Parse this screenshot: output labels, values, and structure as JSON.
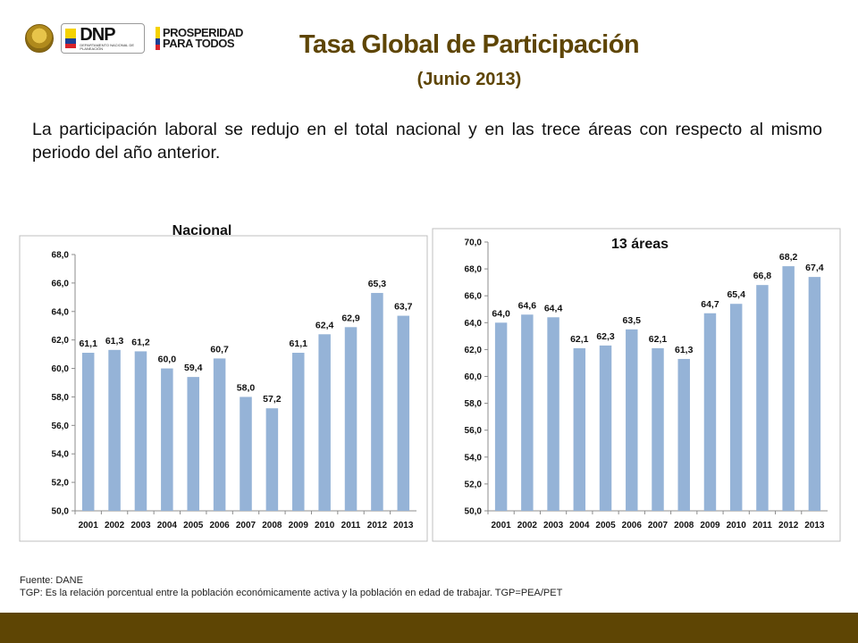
{
  "header": {
    "title": "Tasa Global de Participación",
    "subtitle": "(Junio 2013)",
    "logos": {
      "dnp_text": "DNP",
      "dnp_small": "DEPARTAMENTO NACIONAL DE PLANEACIÓN",
      "prosperidad_line1": "PROSPERIDAD",
      "prosperidad_line2": "PARA TODOS"
    }
  },
  "intro_text": "La participación laboral se redujo en el total nacional y en las trece áreas con respecto al mismo periodo del año anterior.",
  "colors": {
    "bar": "#95b3d7",
    "title": "#5e4504",
    "footer": "#5e4504"
  },
  "chart_data": [
    {
      "type": "bar",
      "title": "Nacional",
      "categories": [
        "2001",
        "2002",
        "2003",
        "2004",
        "2005",
        "2006",
        "2007",
        "2008",
        "2009",
        "2010",
        "2011",
        "2012",
        "2013"
      ],
      "values": [
        61.1,
        61.3,
        61.2,
        60.0,
        59.4,
        60.7,
        58.0,
        57.2,
        61.1,
        62.4,
        62.9,
        65.3,
        63.7
      ],
      "value_labels": [
        "61,1",
        "61,3",
        "61,2",
        "60,0",
        "59,4",
        "60,7",
        "58,0",
        "57,2",
        "61,1",
        "62,4",
        "62,9",
        "65,3",
        "63,7"
      ],
      "ylim": [
        50,
        68
      ],
      "yticks": [
        50,
        52,
        54,
        56,
        58,
        60,
        62,
        64,
        66,
        68
      ],
      "ytick_labels": [
        "50,0",
        "52,0",
        "54,0",
        "56,0",
        "58,0",
        "60,0",
        "62,0",
        "64,0",
        "66,0",
        "68,0"
      ],
      "grid": false
    },
    {
      "type": "bar",
      "title": "13 áreas",
      "categories": [
        "2001",
        "2002",
        "2003",
        "2004",
        "2005",
        "2006",
        "2007",
        "2008",
        "2009",
        "2010",
        "2011",
        "2012",
        "2013"
      ],
      "values": [
        64.0,
        64.6,
        64.4,
        62.1,
        62.3,
        63.5,
        62.1,
        61.3,
        64.7,
        65.4,
        66.8,
        68.2,
        67.4
      ],
      "value_labels": [
        "64,0",
        "64,6",
        "64,4",
        "62,1",
        "62,3",
        "63,5",
        "62,1",
        "61,3",
        "64,7",
        "65,4",
        "66,8",
        "68,2",
        "67,4"
      ],
      "ylim": [
        50,
        70
      ],
      "yticks": [
        50,
        52,
        54,
        56,
        58,
        60,
        62,
        64,
        66,
        68,
        70
      ],
      "ytick_labels": [
        "50,0",
        "52,0",
        "54,0",
        "56,0",
        "58,0",
        "60,0",
        "62,0",
        "64,0",
        "66,0",
        "68,0",
        "70,0"
      ],
      "grid": false
    }
  ],
  "footnotes": {
    "source": "Fuente: DANE",
    "definition": "TGP: Es la relación porcentual entre la población económicamente activa y la población  en edad de trabajar. TGP=PEA/PET"
  }
}
